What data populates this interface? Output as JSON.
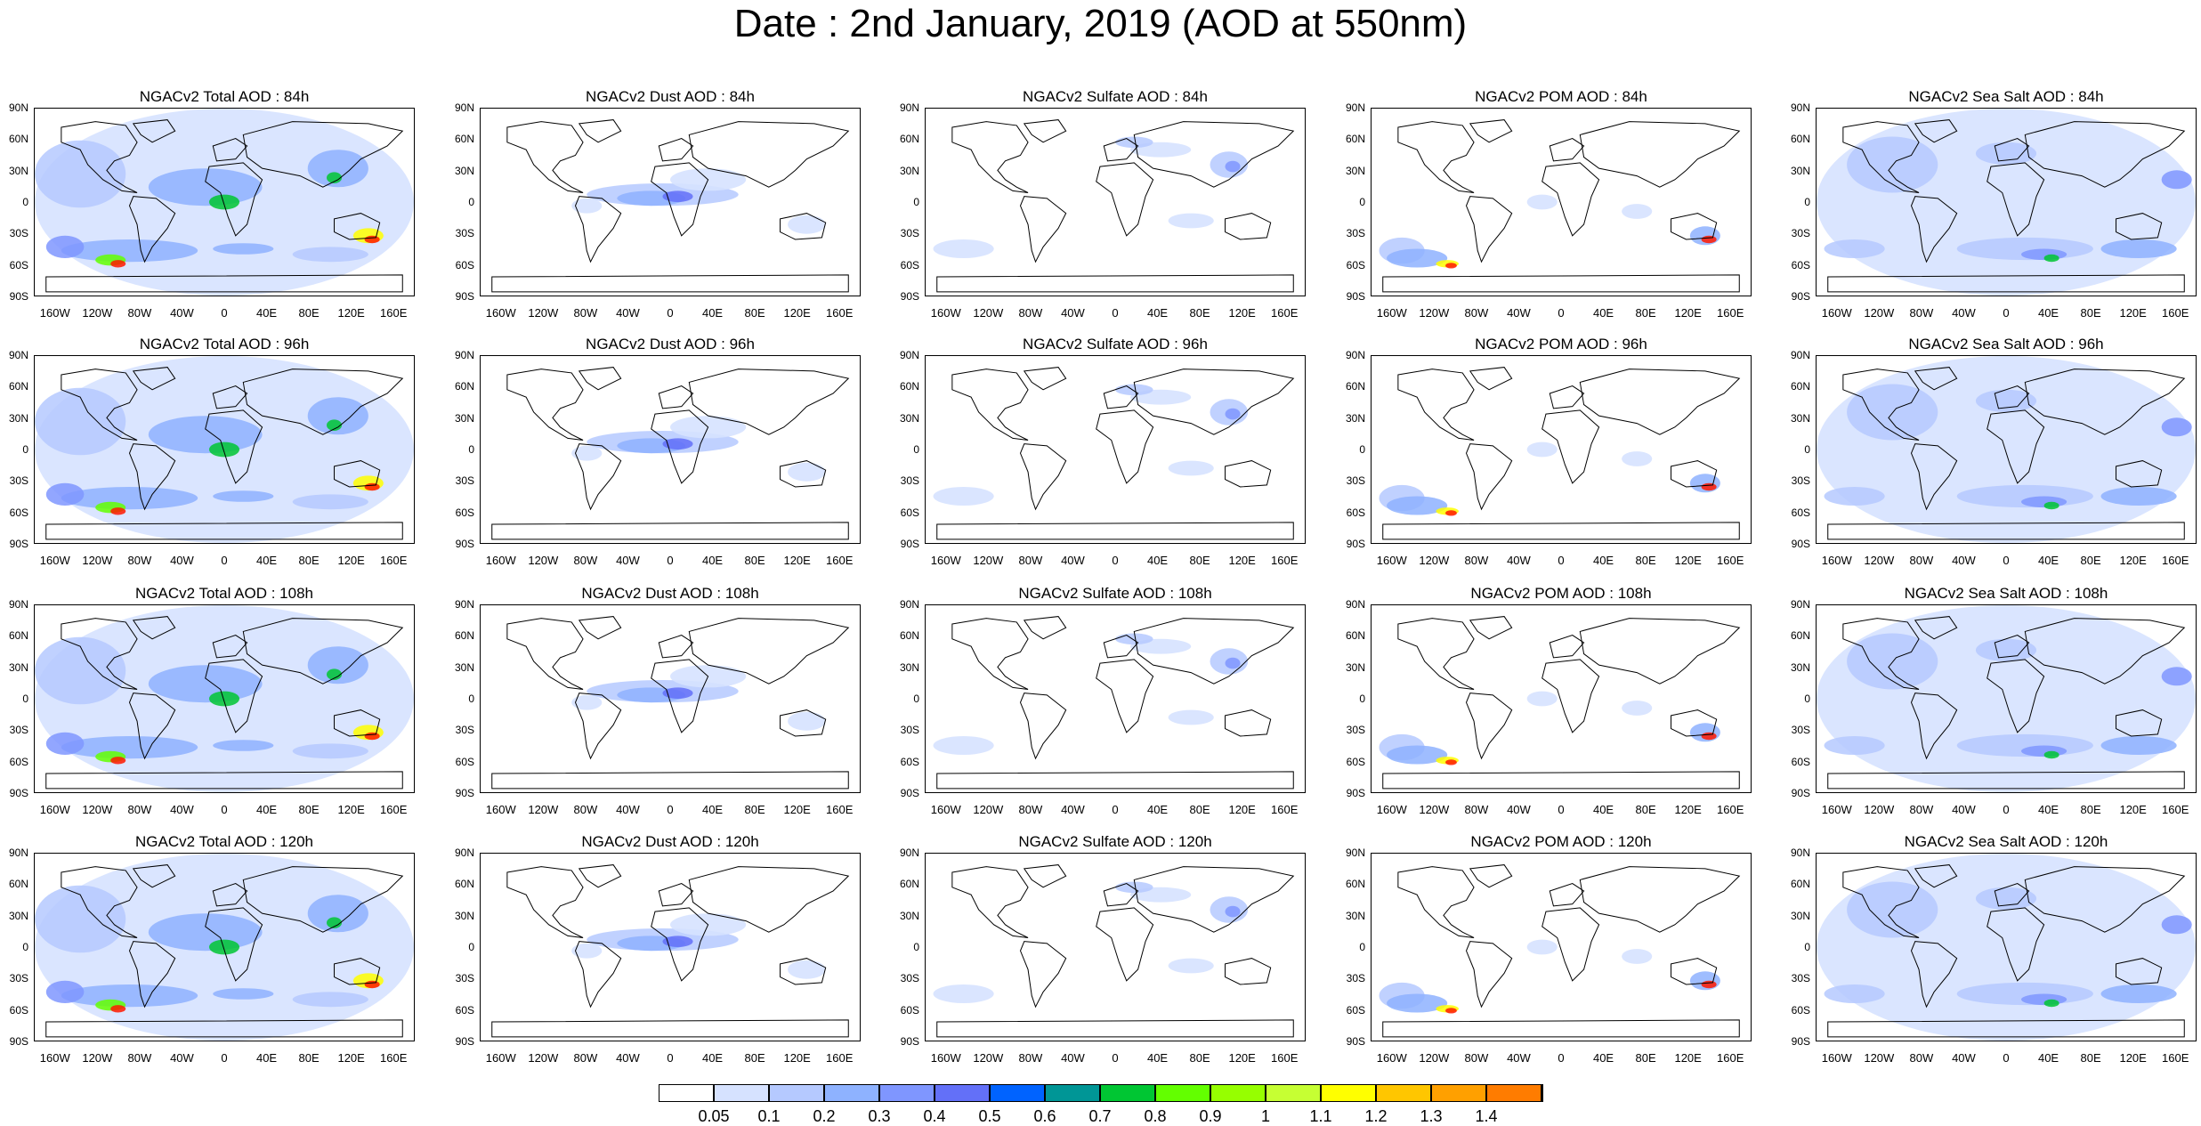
{
  "title": "Date : 2nd January, 2019 (AOD at 550nm)",
  "panels": [
    {
      "title": "NGACv2 Total AOD : 84h",
      "species": "total"
    },
    {
      "title": "NGACv2 Dust AOD : 84h",
      "species": "dust"
    },
    {
      "title": "NGACv2 Sulfate AOD : 84h",
      "species": "sulfate"
    },
    {
      "title": "NGACv2 POM AOD : 84h",
      "species": "pom"
    },
    {
      "title": "NGACv2 Sea Salt AOD : 84h",
      "species": "seasalt"
    },
    {
      "title": "NGACv2 Total AOD : 96h",
      "species": "total"
    },
    {
      "title": "NGACv2 Dust AOD : 96h",
      "species": "dust"
    },
    {
      "title": "NGACv2 Sulfate AOD : 96h",
      "species": "sulfate"
    },
    {
      "title": "NGACv2 POM AOD : 96h",
      "species": "pom"
    },
    {
      "title": "NGACv2 Sea Salt AOD : 96h",
      "species": "seasalt"
    },
    {
      "title": "NGACv2 Total AOD : 108h",
      "species": "total"
    },
    {
      "title": "NGACv2 Dust AOD : 108h",
      "species": "dust"
    },
    {
      "title": "NGACv2 Sulfate AOD : 108h",
      "species": "sulfate"
    },
    {
      "title": "NGACv2 POM AOD : 108h",
      "species": "pom"
    },
    {
      "title": "NGACv2 Sea Salt AOD : 108h",
      "species": "seasalt"
    },
    {
      "title": "NGACv2 Total AOD : 120h",
      "species": "total"
    },
    {
      "title": "NGACv2 Dust AOD : 120h",
      "species": "dust"
    },
    {
      "title": "NGACv2 Sulfate AOD : 120h",
      "species": "sulfate"
    },
    {
      "title": "NGACv2 POM AOD : 120h",
      "species": "pom"
    },
    {
      "title": "NGACv2 Sea Salt  AOD : 120h",
      "species": "seasalt"
    }
  ],
  "lat_labels": [
    "90N",
    "60N",
    "30N",
    "0",
    "30S",
    "60S",
    "90S"
  ],
  "lon_labels": [
    "160W",
    "120W",
    "80W",
    "40W",
    "0",
    "40E",
    "80E",
    "120E",
    "160E"
  ],
  "colorbar": {
    "labels": [
      "0.05",
      "0.1",
      "0.2",
      "0.3",
      "0.4",
      "0.5",
      "0.6",
      "0.7",
      "0.8",
      "0.9",
      "1",
      "1.1",
      "1.2",
      "1.3",
      "1.4"
    ],
    "colors": [
      "#ffffff",
      "#d6e2ff",
      "#b5c9ff",
      "#8eb2ff",
      "#7f96ff",
      "#6370f8",
      "#0063ff",
      "#009696",
      "#00c633",
      "#63ff00",
      "#96ff00",
      "#c6ff33",
      "#ffff00",
      "#ffc600",
      "#ffa000",
      "#ff7c00",
      "#ff1900"
    ]
  }
}
